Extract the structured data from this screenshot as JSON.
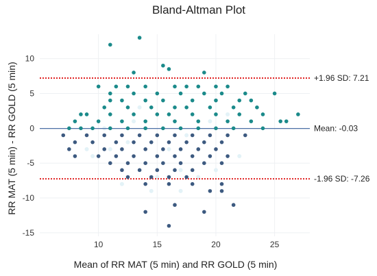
{
  "chart_data": {
    "type": "scatter",
    "title": "Bland-Altman Plot",
    "xlabel": "Mean of RR MAT (5 min) and RR GOLD (5 min)",
    "ylabel": "RR MAT (5 min) - RR GOLD (5 min)",
    "xlim": [
      5,
      28
    ],
    "ylim": [
      -15.5,
      13.5
    ],
    "xticks": [
      10,
      15,
      20,
      25
    ],
    "yticks": [
      -15,
      -10,
      -5,
      0,
      5,
      10
    ],
    "grid": true,
    "lines": {
      "mean": {
        "value": -0.03,
        "label": "Mean: -0.03",
        "color": "#4a6fa5"
      },
      "upper": {
        "value": 7.21,
        "label": "+1.96 SD: 7.21",
        "color": "#e02020"
      },
      "lower": {
        "value": -7.26,
        "label": "-1.96 SD: -7.26",
        "color": "#e02020"
      }
    },
    "colors": {
      "positive": "#1b8a8a",
      "negative": "#3d5a80",
      "faint": "#e3f2f7"
    },
    "points": [
      [
        11,
        12
      ],
      [
        13.5,
        13
      ],
      [
        13,
        8
      ],
      [
        15.5,
        9
      ],
      [
        16,
        8.5
      ],
      [
        19,
        8
      ],
      [
        11.5,
        6
      ],
      [
        12.5,
        6
      ],
      [
        14,
        6
      ],
      [
        16.5,
        6
      ],
      [
        17.5,
        6
      ],
      [
        18.5,
        6
      ],
      [
        20,
        6
      ],
      [
        21,
        6
      ],
      [
        10,
        6
      ],
      [
        11,
        5
      ],
      [
        13,
        5
      ],
      [
        15,
        5
      ],
      [
        17,
        5
      ],
      [
        19,
        5
      ],
      [
        20.5,
        5
      ],
      [
        22.5,
        5
      ],
      [
        25,
        5
      ],
      [
        11,
        4
      ],
      [
        12,
        4
      ],
      [
        14,
        4
      ],
      [
        15.5,
        4
      ],
      [
        18,
        4
      ],
      [
        20,
        4
      ],
      [
        22,
        4
      ],
      [
        23,
        4
      ],
      [
        10.5,
        3
      ],
      [
        12.5,
        3
      ],
      [
        14.5,
        3
      ],
      [
        16.5,
        3
      ],
      [
        17.5,
        3
      ],
      [
        19.5,
        3
      ],
      [
        21.5,
        3
      ],
      [
        23.5,
        3
      ],
      [
        8.5,
        2
      ],
      [
        9,
        2
      ],
      [
        11,
        2
      ],
      [
        13,
        2
      ],
      [
        15,
        2
      ],
      [
        16,
        2
      ],
      [
        18,
        2
      ],
      [
        20,
        2
      ],
      [
        22,
        2
      ],
      [
        24,
        2
      ],
      [
        27,
        2
      ],
      [
        8,
        1
      ],
      [
        10,
        1
      ],
      [
        12,
        1
      ],
      [
        14,
        1
      ],
      [
        16.5,
        1
      ],
      [
        18.5,
        1
      ],
      [
        21,
        1
      ],
      [
        23,
        1
      ],
      [
        25.5,
        1
      ],
      [
        26,
        1
      ],
      [
        7.5,
        0
      ],
      [
        8.5,
        0
      ],
      [
        9.5,
        0
      ],
      [
        11,
        0
      ],
      [
        12.5,
        0
      ],
      [
        14,
        0
      ],
      [
        15.5,
        0
      ],
      [
        17,
        0
      ],
      [
        18.5,
        0
      ],
      [
        20,
        0
      ],
      [
        21.5,
        0
      ],
      [
        24,
        0
      ],
      [
        7,
        -1
      ],
      [
        9,
        -1
      ],
      [
        10.5,
        -1
      ],
      [
        12,
        -1
      ],
      [
        13.5,
        -1
      ],
      [
        15,
        -1
      ],
      [
        16.5,
        -1
      ],
      [
        18,
        -1
      ],
      [
        19.5,
        -1
      ],
      [
        21,
        -1
      ],
      [
        22.5,
        -1
      ],
      [
        8,
        -2
      ],
      [
        9.5,
        -2
      ],
      [
        11.5,
        -2
      ],
      [
        13,
        -2
      ],
      [
        14.5,
        -2
      ],
      [
        16,
        -2
      ],
      [
        17.5,
        -2
      ],
      [
        19,
        -2
      ],
      [
        20.5,
        -2
      ],
      [
        7.5,
        -3
      ],
      [
        10.5,
        -3
      ],
      [
        12,
        -3
      ],
      [
        14,
        -3
      ],
      [
        15.5,
        -3
      ],
      [
        17,
        -3
      ],
      [
        18.5,
        -3
      ],
      [
        20,
        -3
      ],
      [
        8,
        -4
      ],
      [
        10,
        -4
      ],
      [
        11.5,
        -4
      ],
      [
        13,
        -4
      ],
      [
        15,
        -4
      ],
      [
        16.5,
        -4
      ],
      [
        18,
        -4
      ],
      [
        19.5,
        -4
      ],
      [
        21,
        -4
      ],
      [
        11,
        -5
      ],
      [
        12.5,
        -5
      ],
      [
        14,
        -5
      ],
      [
        15.5,
        -5
      ],
      [
        17,
        -5
      ],
      [
        19,
        -5
      ],
      [
        20.5,
        -5
      ],
      [
        12,
        -6
      ],
      [
        13.5,
        -6
      ],
      [
        15,
        -6
      ],
      [
        16.5,
        -6
      ],
      [
        18,
        -6
      ],
      [
        12.5,
        -7
      ],
      [
        14.5,
        -7
      ],
      [
        16,
        -7
      ],
      [
        17.5,
        -7
      ],
      [
        14,
        -8
      ],
      [
        16,
        -8
      ],
      [
        18,
        -8
      ],
      [
        20.5,
        -8
      ],
      [
        19.5,
        -9
      ],
      [
        20.5,
        -9
      ],
      [
        16.5,
        -11
      ],
      [
        21.5,
        -11
      ],
      [
        14,
        -12
      ],
      [
        19,
        -12
      ],
      [
        16,
        -14
      ]
    ],
    "faint_points": [
      [
        9.5,
        -4
      ],
      [
        11,
        -3
      ],
      [
        12.5,
        -2
      ],
      [
        14,
        -5
      ],
      [
        15,
        -7
      ],
      [
        17,
        -6
      ],
      [
        18.5,
        -7
      ],
      [
        10.5,
        0
      ],
      [
        13,
        1
      ],
      [
        16,
        -3
      ],
      [
        12,
        -8
      ],
      [
        14.5,
        -9
      ],
      [
        17,
        -9
      ],
      [
        20,
        -6
      ],
      [
        22,
        -4
      ],
      [
        9,
        -3
      ],
      [
        19.5,
        1
      ],
      [
        21,
        2
      ],
      [
        13.5,
        3
      ],
      [
        17.5,
        -1
      ]
    ]
  }
}
